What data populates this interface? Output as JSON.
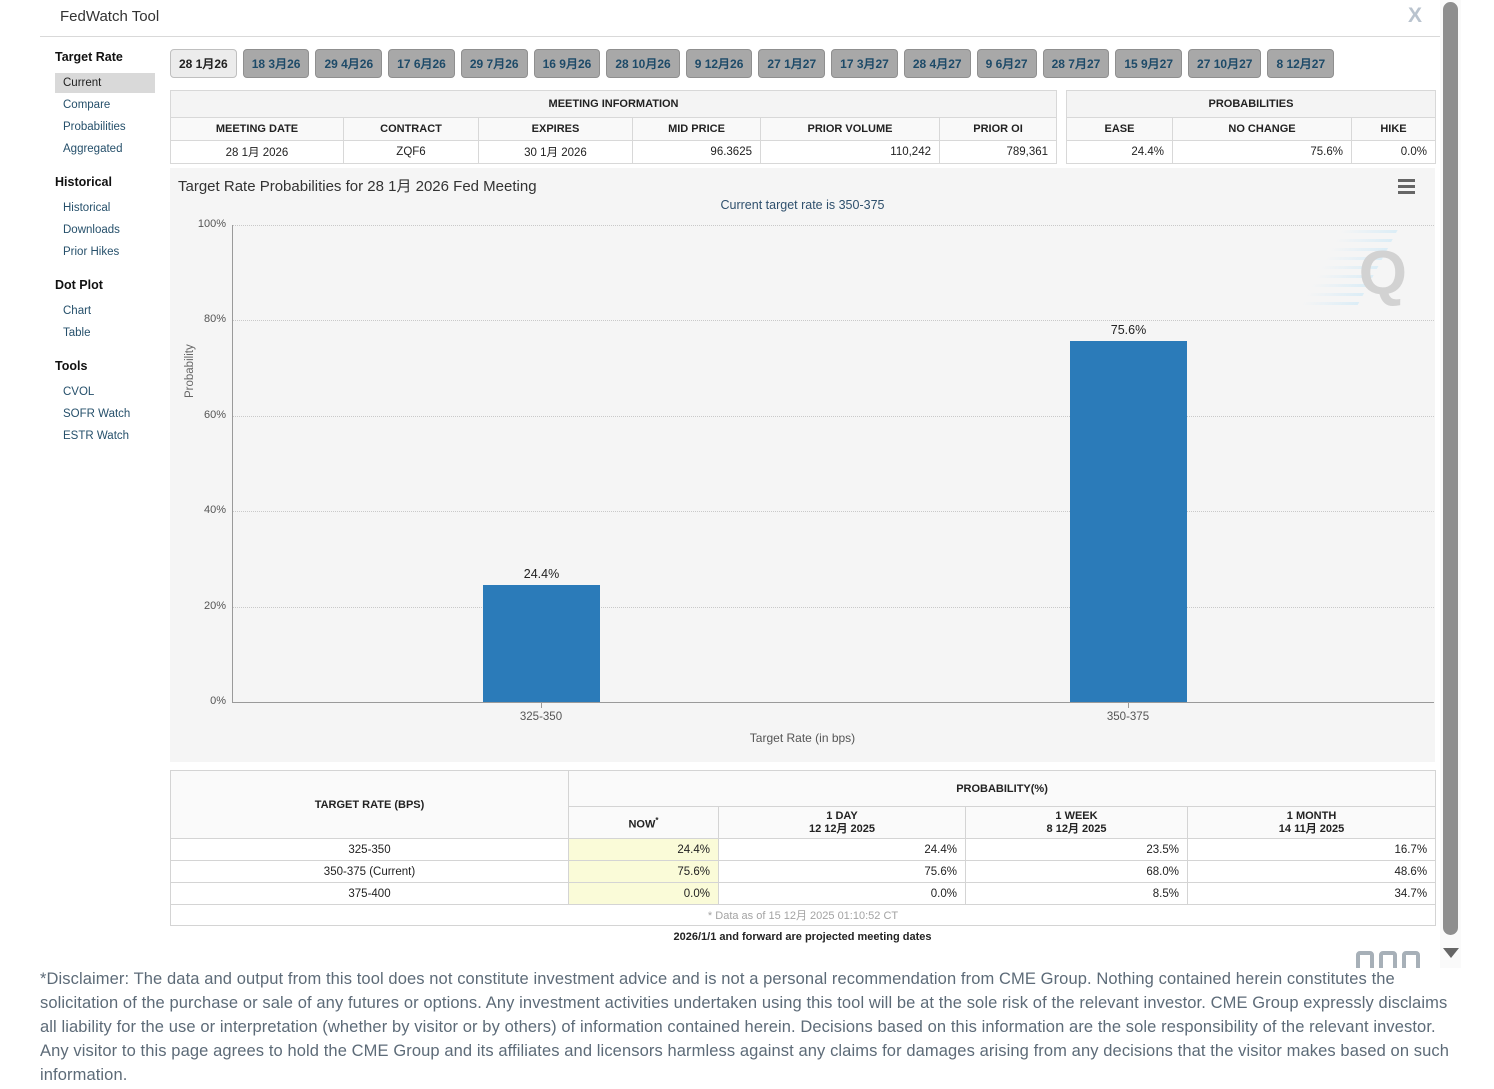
{
  "header": {
    "title": "FedWatch Tool",
    "close_icon": "x-close"
  },
  "sidebar": {
    "sections": [
      {
        "heading": "Target Rate",
        "items": [
          {
            "label": "Current",
            "selected": true
          },
          {
            "label": "Compare",
            "selected": false
          },
          {
            "label": "Probabilities",
            "selected": false
          },
          {
            "label": "Aggregated",
            "selected": false
          }
        ]
      },
      {
        "heading": "Historical",
        "items": [
          {
            "label": "Historical",
            "selected": false
          },
          {
            "label": "Downloads",
            "selected": false
          },
          {
            "label": "Prior Hikes",
            "selected": false
          }
        ]
      },
      {
        "heading": "Dot Plot",
        "items": [
          {
            "label": "Chart",
            "selected": false
          },
          {
            "label": "Table",
            "selected": false
          }
        ]
      },
      {
        "heading": "Tools",
        "items": [
          {
            "label": "CVOL",
            "selected": false
          },
          {
            "label": "SOFR Watch",
            "selected": false
          },
          {
            "label": "ESTR Watch",
            "selected": false
          }
        ]
      }
    ]
  },
  "tabs": {
    "selected_index": 0,
    "items": [
      "28 1月26",
      "18 3月26",
      "29 4月26",
      "17 6月26",
      "29 7月26",
      "16 9月26",
      "28 10月26",
      "9 12月26",
      "27 1月27",
      "17 3月27",
      "28 4月27",
      "9 6月27",
      "28 7月27",
      "15 9月27",
      "27 10月27",
      "8 12月27"
    ]
  },
  "meeting_info": {
    "title": "MEETING INFORMATION",
    "columns": [
      "MEETING DATE",
      "CONTRACT",
      "EXPIRES",
      "MID PRICE",
      "PRIOR VOLUME",
      "PRIOR OI"
    ],
    "values": [
      "28 1月 2026",
      "ZQF6",
      "30 1月 2026",
      "96.3625",
      "110,242",
      "789,361"
    ]
  },
  "probabilities": {
    "title": "PROBABILITIES",
    "columns": [
      "EASE",
      "NO CHANGE",
      "HIKE"
    ],
    "values": [
      "24.4%",
      "75.6%",
      "0.0%"
    ]
  },
  "chart_data": {
    "type": "bar",
    "title": "Target Rate Probabilities for 28 1月 2026 Fed Meeting",
    "subtitle": "Current target rate is 350-375",
    "categories": [
      "325-350",
      "350-375"
    ],
    "values": [
      24.4,
      75.6
    ],
    "value_labels": [
      "24.4%",
      "75.6%"
    ],
    "xlabel": "Target Rate (in bps)",
    "ylabel": "Probability",
    "ylim": [
      0,
      100
    ],
    "ytick_labels": [
      "0%",
      "20%",
      "40%",
      "60%",
      "80%",
      "100%"
    ],
    "grid": "dotted horizontal",
    "legend": "none",
    "bar_color": "#2b7bb9",
    "menu_icon": "hamburger-menu",
    "watermark": "Q"
  },
  "history_table": {
    "row_header": "TARGET RATE (BPS)",
    "group_header": "PROBABILITY(%)",
    "col_headers": [
      {
        "line1": "NOW",
        "sup": "*",
        "line2": ""
      },
      {
        "line1": "1 DAY",
        "line2": "12 12月 2025"
      },
      {
        "line1": "1 WEEK",
        "line2": "8 12月 2025"
      },
      {
        "line1": "1 MONTH",
        "line2": "14 11月 2025"
      }
    ],
    "rows": [
      {
        "rate": "325-350",
        "now": "24.4%",
        "day": "24.4%",
        "week": "23.5%",
        "month": "16.7%"
      },
      {
        "rate": "350-375 (Current)",
        "now": "75.6%",
        "day": "75.6%",
        "week": "68.0%",
        "month": "48.6%"
      },
      {
        "rate": "375-400",
        "now": "0.0%",
        "day": "0.0%",
        "week": "8.5%",
        "month": "34.7%"
      }
    ],
    "footnote": "* Data as of 15 12月 2025 01:10:52 CT",
    "highlight_color": "#fafbd8"
  },
  "notes": {
    "projected": "2026/1/1 and forward are projected meeting dates"
  },
  "disclaimer": "*Disclaimer: The data and output from this tool does not constitute investment advice and is not a personal recommendation from CME Group.  Nothing contained herein constitutes the solicitation of the purchase or sale of any futures or options.  Any investment activities undertaken using this tool will be at the sole risk of the relevant investor.  CME Group expressly disclaims all liability for the use or interpretation (whether by visitor or by others) of information contained herein. Decisions based on this information are the sole responsibility of the relevant investor.  Any visitor to this page agrees to hold the CME Group and its affiliates and licensors harmless against any claims for damages arising from any decisions that the visitor makes based on such information.",
  "colors": {
    "bar": "#2b7bb9",
    "tab_selected_bg": "#ececec",
    "tab_bg": "#a8a8a8",
    "chart_bg": "#f5f5f5",
    "now_highlight": "#fafbd8",
    "link": "#26506b"
  }
}
